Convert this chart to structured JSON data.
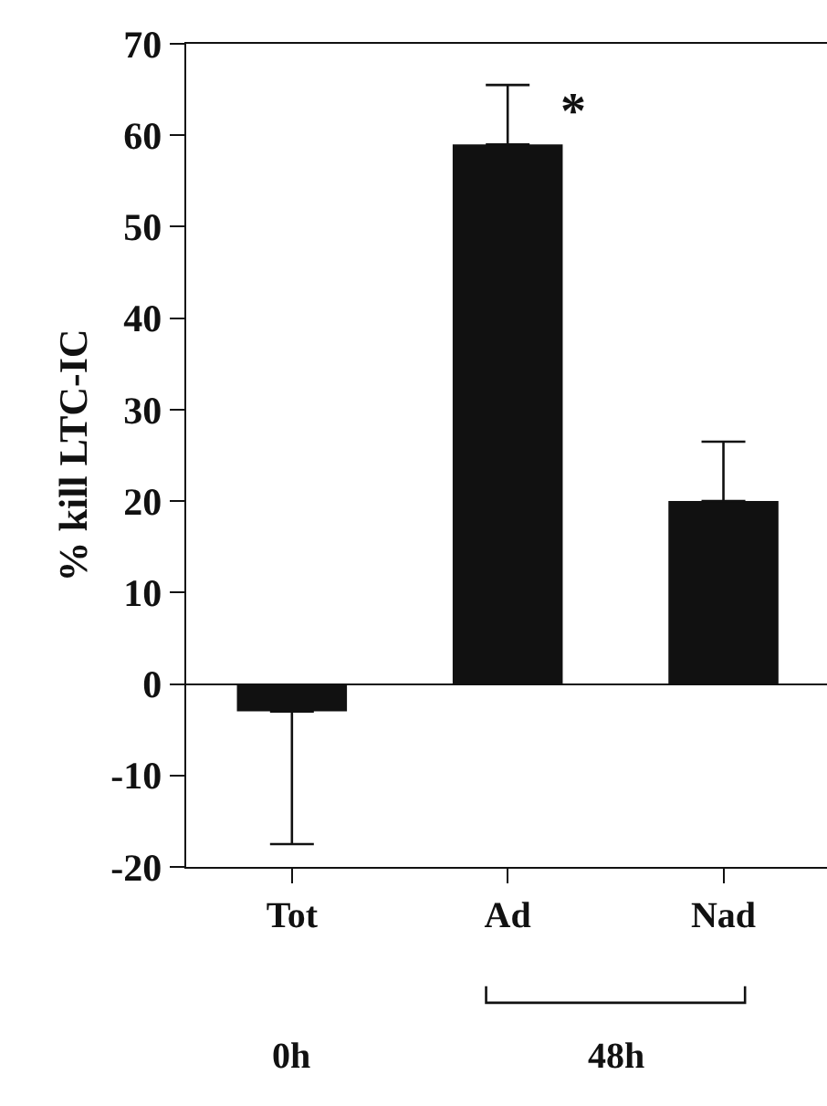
{
  "chart_data": {
    "type": "bar",
    "ylabel": "% kill LTC-IC",
    "categories": [
      "Tot",
      "Ad",
      "Nad"
    ],
    "values": [
      -3,
      59,
      20
    ],
    "errors": [
      [
        -17.5,
        -3
      ],
      [
        59,
        65.5
      ],
      [
        20,
        26.5
      ]
    ],
    "color": "#111111",
    "ylim": [
      -20,
      70
    ],
    "yticks": [
      -20,
      -10,
      0,
      10,
      20,
      30,
      40,
      50,
      60,
      70
    ],
    "annotations": [
      "0h",
      "48h",
      "*"
    ]
  }
}
